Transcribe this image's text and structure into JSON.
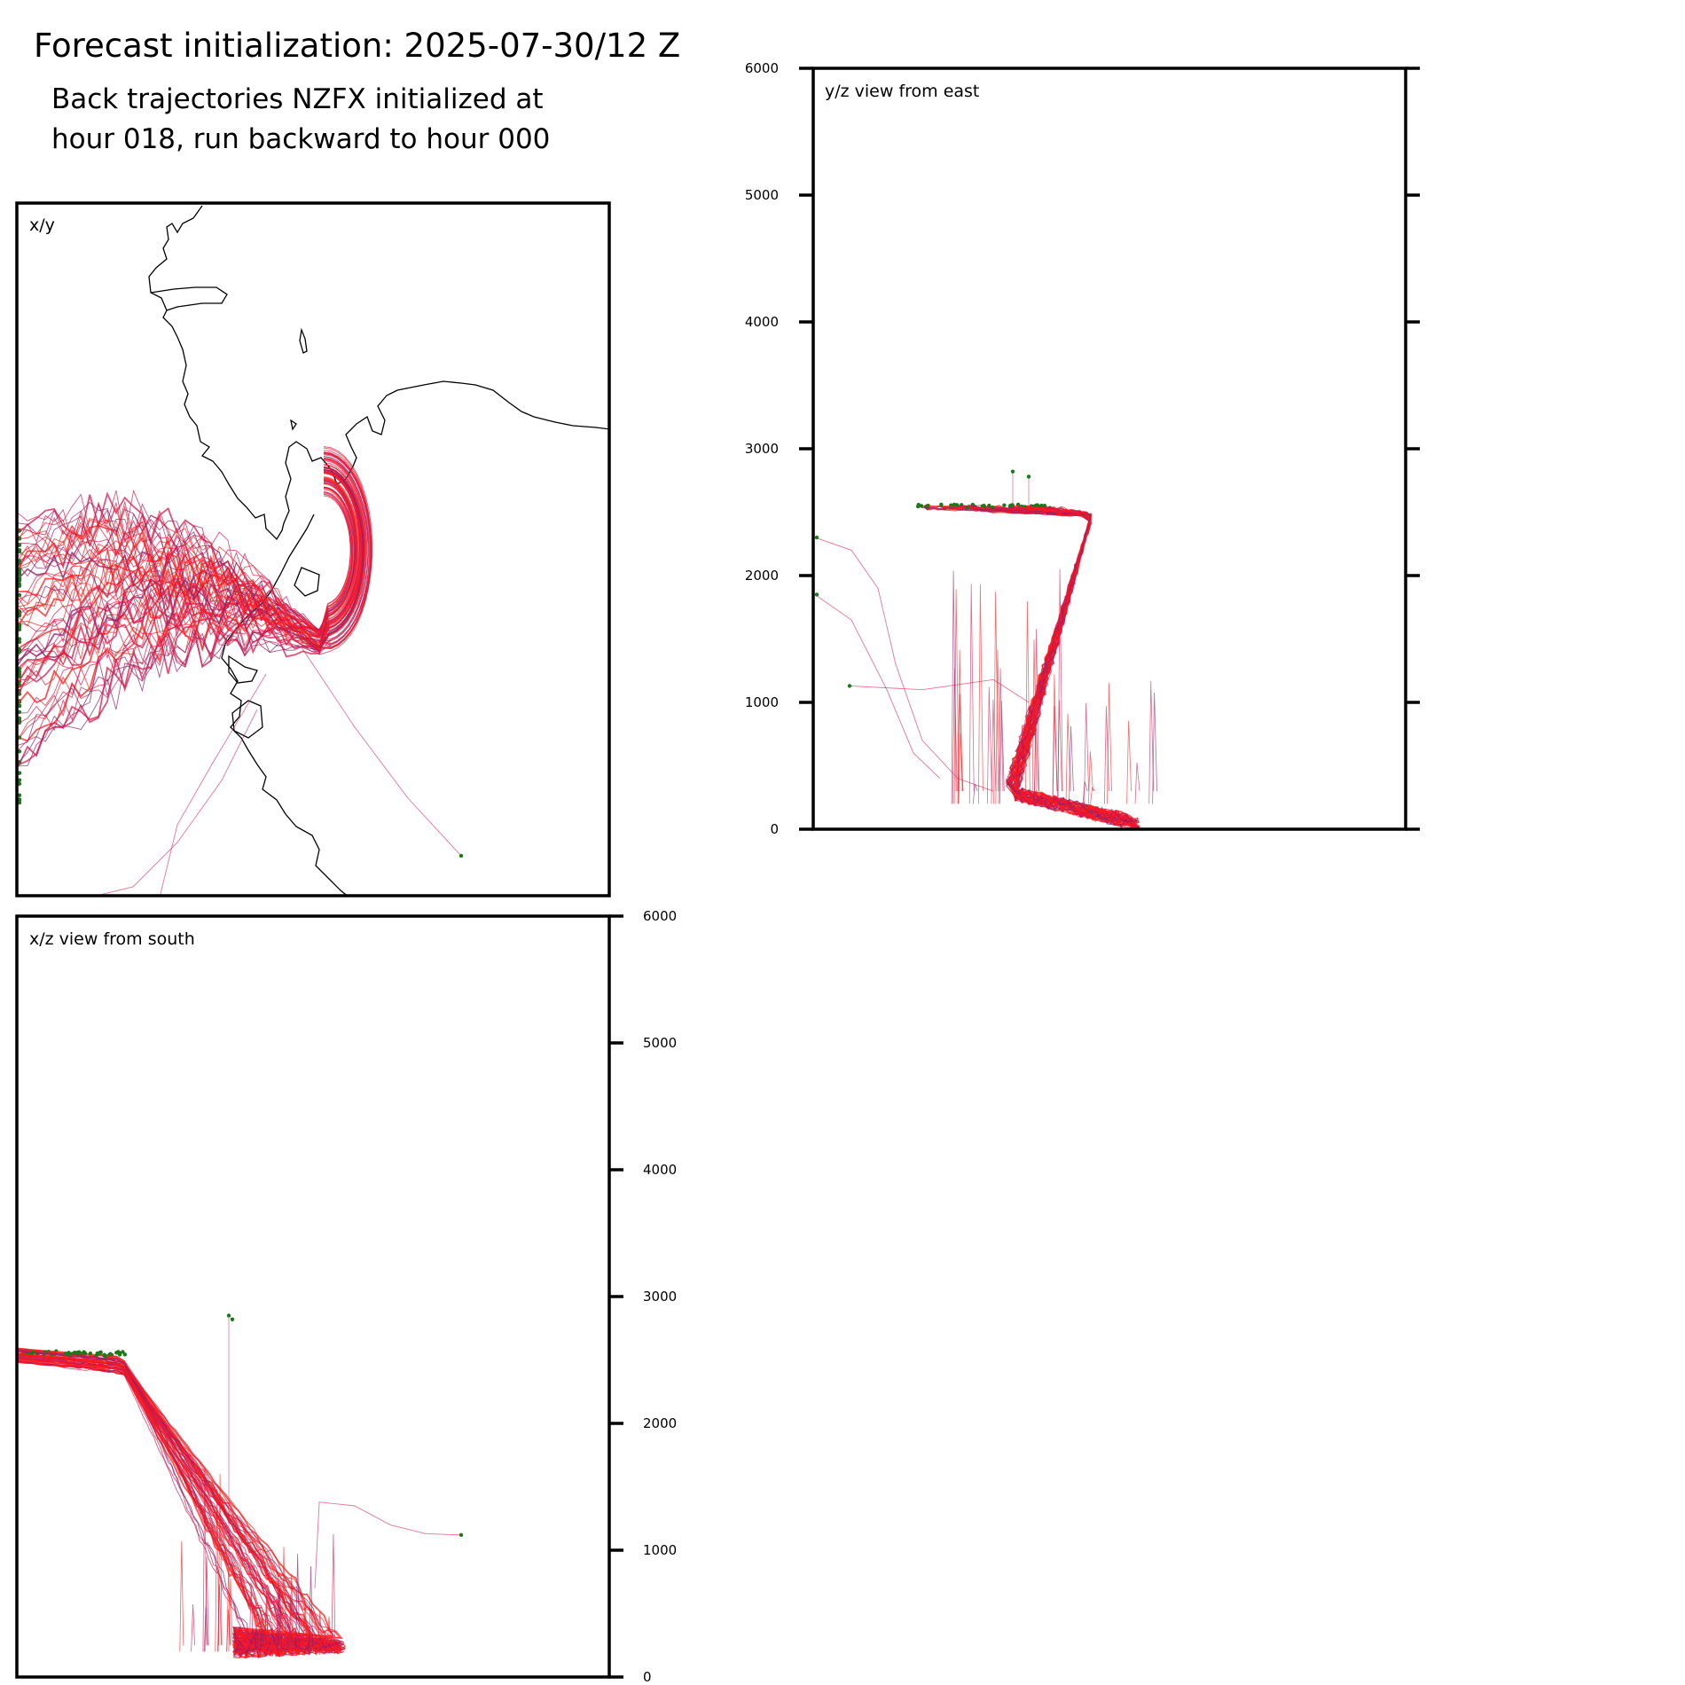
{
  "header": {
    "title": "Forecast initialization: 2025-07-30/12 Z",
    "subtitle_lines": [
      "Back trajectories NZFX initialized at",
      "hour 018, run backward to hour 000"
    ]
  },
  "colors": {
    "trajectory_red": "#ff1a1a",
    "trajectory_crimson": "#d7184b",
    "trajectory_purple": "#8c1f6a",
    "endpoint_green": "#1a7a1a",
    "coastline": "#000000"
  },
  "chart_data": [
    {
      "type": "line",
      "title": "x/y",
      "description_label": "x/y",
      "axes": "none",
      "grid": false
    },
    {
      "type": "line",
      "title": "y/z view from east",
      "ylim": [
        0,
        6000
      ],
      "yticks": [
        0,
        1000,
        2000,
        3000,
        4000,
        5000,
        6000
      ],
      "ytick_side": "left",
      "grid": false
    },
    {
      "type": "line",
      "title": "x/z view from south",
      "ylim": [
        0,
        6000
      ],
      "yticks": [
        0,
        1000,
        2000,
        3000,
        4000,
        5000,
        6000
      ],
      "ytick_side": "right",
      "grid": false
    }
  ]
}
